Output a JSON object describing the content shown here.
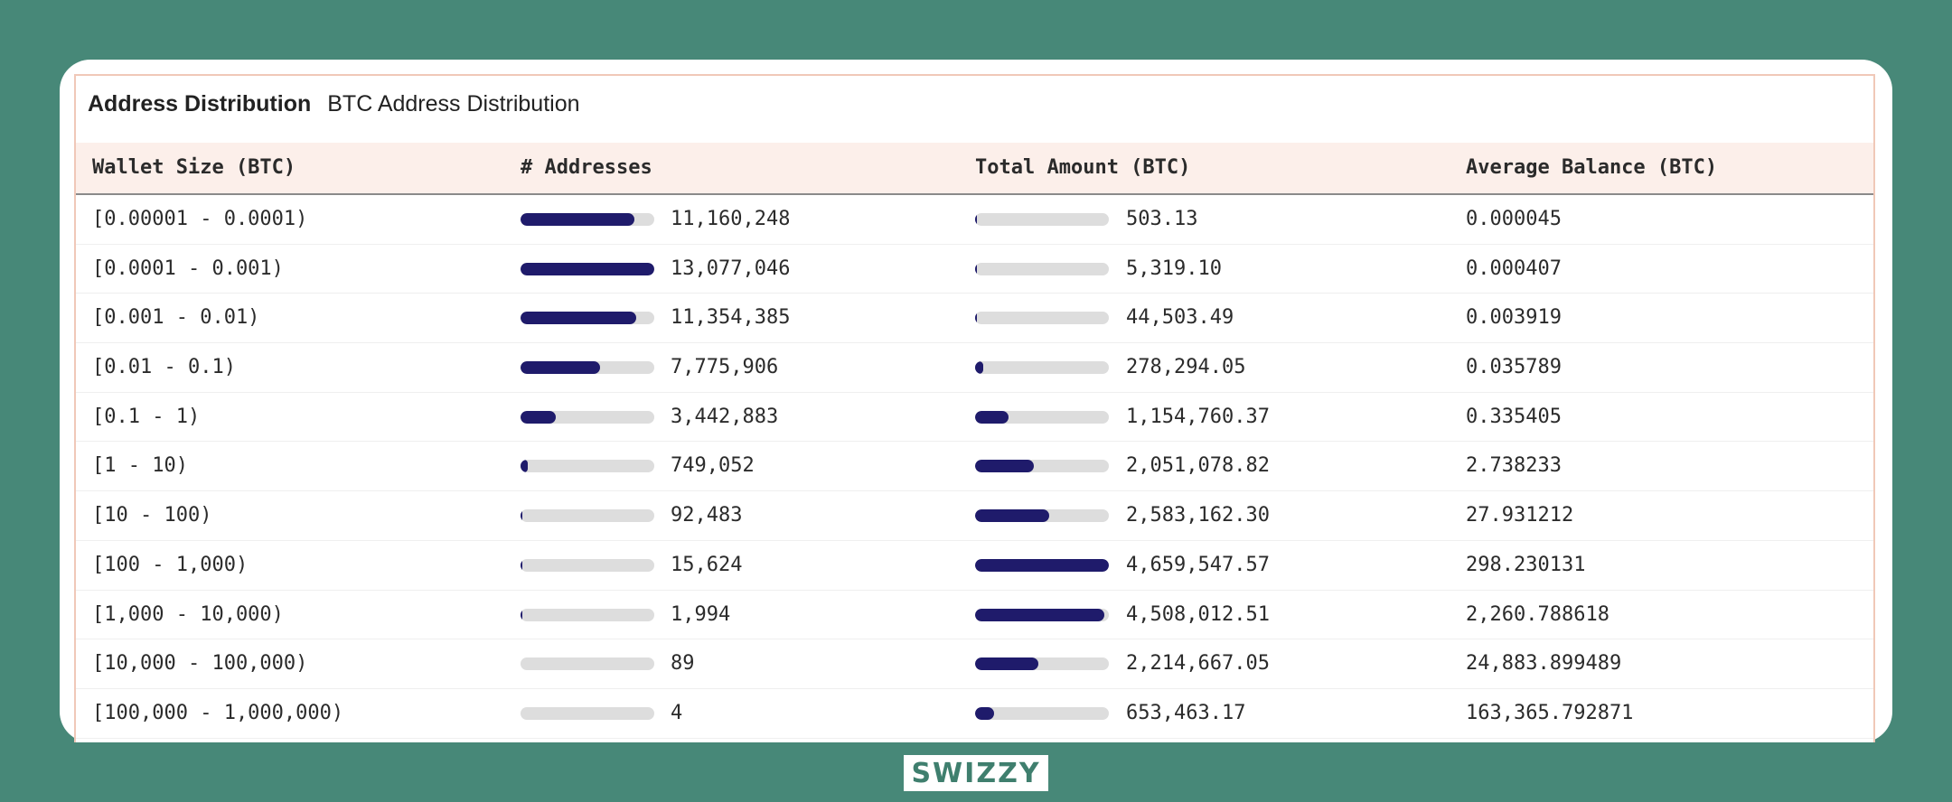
{
  "panel": {
    "title": "Address Distribution",
    "subtitle": "BTC Address Distribution"
  },
  "table": {
    "headers": [
      "Wallet Size (BTC)",
      "# Addresses",
      "Total Amount (BTC)",
      "Average Balance (BTC)"
    ],
    "rows": [
      {
        "size": "[0.00001 - 0.0001)",
        "addresses": "11,160,248",
        "addr_pct": 0.853,
        "total": "503.13",
        "total_pct": 0.0001,
        "avg": "0.000045"
      },
      {
        "size": "[0.0001 - 0.001)",
        "addresses": "13,077,046",
        "addr_pct": 1.0,
        "total": "5,319.10",
        "total_pct": 0.0011,
        "avg": "0.000407"
      },
      {
        "size": "[0.001 - 0.01)",
        "addresses": "11,354,385",
        "addr_pct": 0.868,
        "total": "44,503.49",
        "total_pct": 0.0096,
        "avg": "0.003919"
      },
      {
        "size": "[0.01 - 0.1)",
        "addresses": "7,775,906",
        "addr_pct": 0.595,
        "total": "278,294.05",
        "total_pct": 0.06,
        "avg": "0.035789"
      },
      {
        "size": "[0.1 - 1)",
        "addresses": "3,442,883",
        "addr_pct": 0.263,
        "total": "1,154,760.37",
        "total_pct": 0.248,
        "avg": "0.335405"
      },
      {
        "size": "[1 - 10)",
        "addresses": "749,052",
        "addr_pct": 0.057,
        "total": "2,051,078.82",
        "total_pct": 0.44,
        "avg": "2.738233"
      },
      {
        "size": "[10 - 100)",
        "addresses": "92,483",
        "addr_pct": 0.007,
        "total": "2,583,162.30",
        "total_pct": 0.554,
        "avg": "27.931212"
      },
      {
        "size": "[100 - 1,000)",
        "addresses": "15,624",
        "addr_pct": 0.0012,
        "total": "4,659,547.57",
        "total_pct": 1.0,
        "avg": "298.230131"
      },
      {
        "size": "[1,000 - 10,000)",
        "addresses": "1,994",
        "addr_pct": 0.0002,
        "total": "4,508,012.51",
        "total_pct": 0.967,
        "avg": "2,260.788618"
      },
      {
        "size": "[10,000 - 100,000)",
        "addresses": "89",
        "addr_pct": 0.0,
        "total": "2,214,667.05",
        "total_pct": 0.475,
        "avg": "24,883.899489"
      },
      {
        "size": "[100,000 - 1,000,000)",
        "addresses": "4",
        "addr_pct": 0.0,
        "total": "653,463.17",
        "total_pct": 0.14,
        "avg": "163,365.792871"
      }
    ]
  },
  "brand": {
    "logo_text": "SWIZZY"
  },
  "colors": {
    "background": "#478878",
    "bar_fill": "#1f1b6b",
    "bar_track": "#dddddd",
    "header_bg": "#fcefea"
  }
}
